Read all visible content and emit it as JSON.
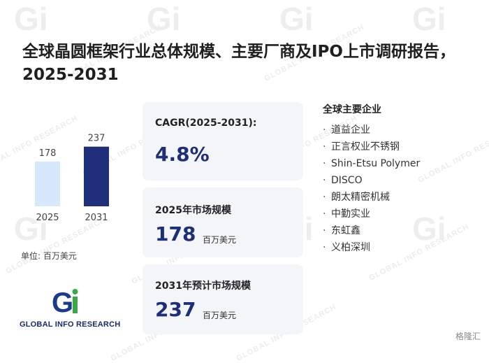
{
  "title": "全球晶圆框架行业总体规模、主要厂商及IPO上市调研报告，2025-2031",
  "chart_data": {
    "type": "bar",
    "categories": [
      "2025",
      "2031"
    ],
    "values": [
      178,
      237
    ],
    "ylim": [
      0,
      250
    ],
    "grid": false,
    "colors": [
      "#d6e8fb",
      "#1f2f7a"
    ]
  },
  "unit_label": "单位: 百万美元",
  "cards": [
    {
      "label": "CAGR(2025-2031):",
      "value": "4.8%",
      "unit": ""
    },
    {
      "label": "2025年市场规模",
      "value": "178",
      "unit": "百万美元"
    },
    {
      "label": "2031年预计市场规模",
      "value": "237",
      "unit": "百万美元"
    }
  ],
  "companies": {
    "heading": "全球主要企业",
    "items": [
      "道益企业",
      "正言权业不锈钢",
      "Shin-Etsu Polymer",
      "DISCO",
      "朗太精密机械",
      "中勤实业",
      "东虹鑫",
      "义柏深圳"
    ]
  },
  "logo": {
    "text": "GLOBAL INFO RESEARCH",
    "mark": "Gi",
    "colors": {
      "g": "#1a3a8a",
      "i": "#3aa845"
    }
  },
  "watermark_text": "GLOBAL INFO RESEARCH",
  "corner_badge": "格隆汇"
}
